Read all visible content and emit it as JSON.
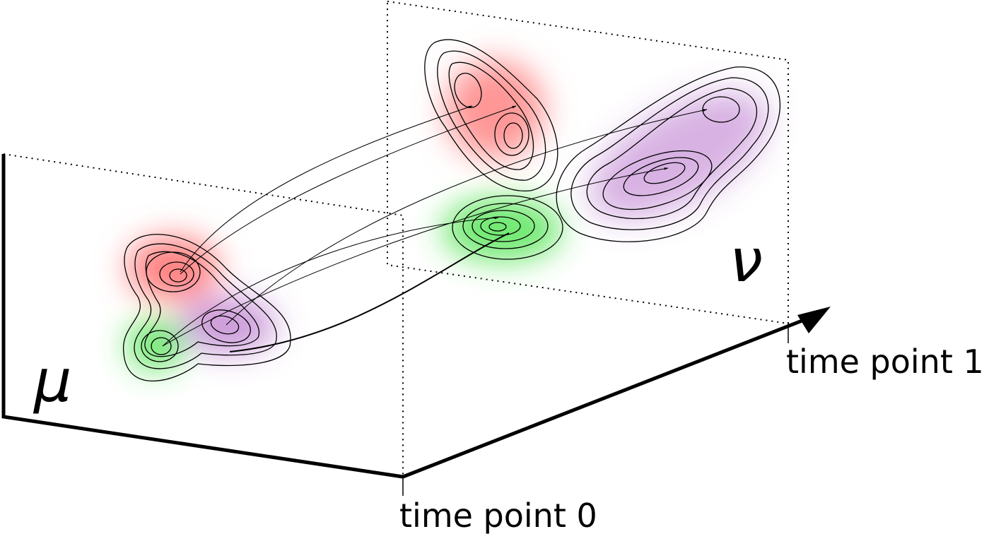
{
  "distributions": [
    {
      "label": "μ"
    },
    {
      "label": "ν"
    }
  ],
  "time_points": [
    {
      "label": "time point 0"
    },
    {
      "label": "time point 1"
    }
  ]
}
